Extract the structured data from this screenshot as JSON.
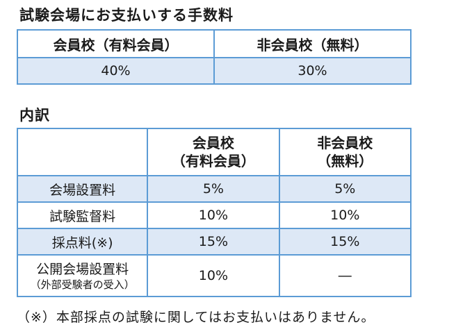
{
  "title": "試験会場にお支払いする手数料",
  "fees": {
    "headers": [
      "会員校（有料会員）",
      "非会員校（無料）"
    ],
    "values": [
      "40%",
      "30%"
    ]
  },
  "breakdown": {
    "title": "内訳",
    "headers": {
      "col1_line1": "会員校",
      "col1_line2": "（有料会員）",
      "col2_line1": "非会員校",
      "col2_line2": "（無料）"
    },
    "rows": [
      {
        "label": "会場設置料",
        "member": "5%",
        "nonmember": "5%"
      },
      {
        "label": "試験監督料",
        "member": "10%",
        "nonmember": "10%"
      },
      {
        "label": "採点料(※)",
        "member": "15%",
        "nonmember": "15%"
      },
      {
        "label": "公開会場設置料",
        "sublabel": "（外部受験者の受入）",
        "member": "10%",
        "nonmember": "―"
      }
    ]
  },
  "note": "（※）本部採点の試験に関してはお支払いはありません。",
  "colors": {
    "border": "#5b9bd5",
    "shade": "#dde8f6"
  }
}
